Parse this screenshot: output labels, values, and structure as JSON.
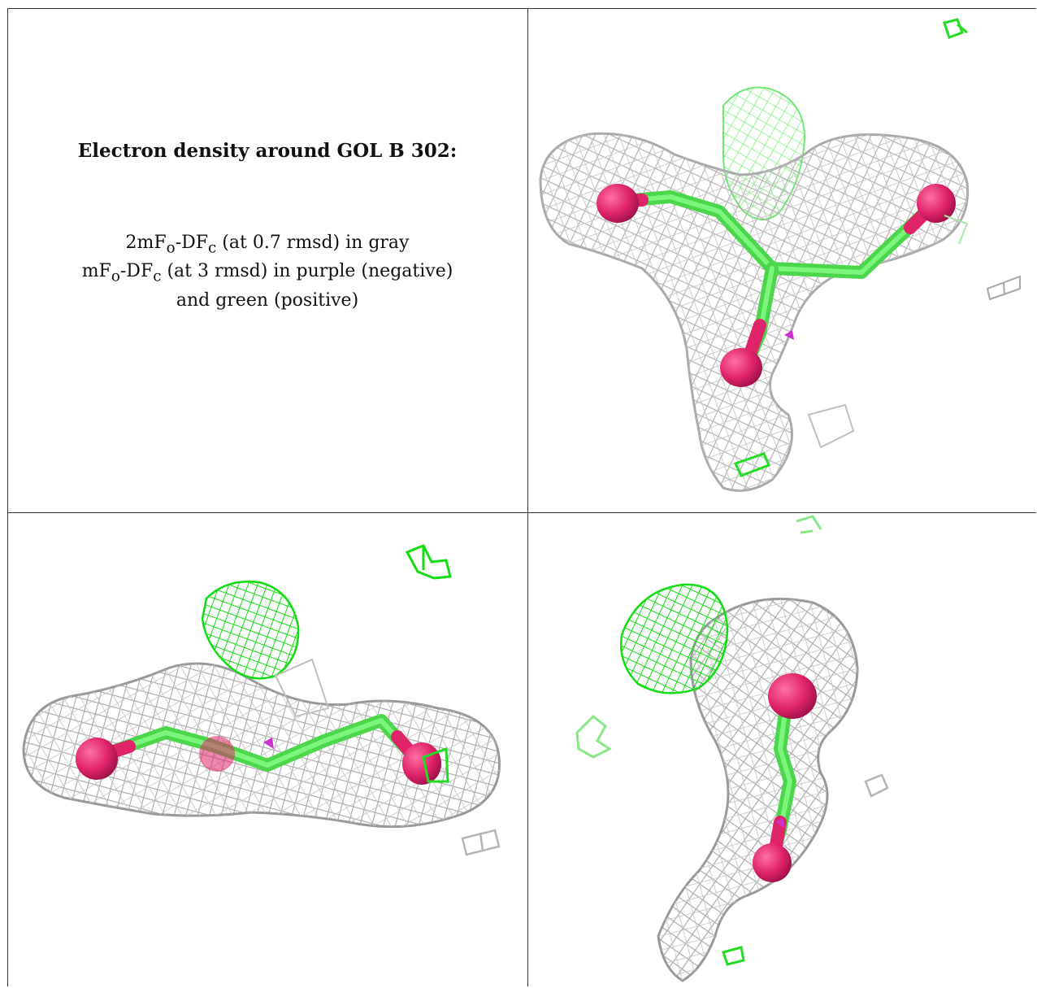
{
  "caption": {
    "title": "Electron density around GOL B 302:",
    "line1": {
      "prefix": "2mF",
      "sub_o": "o",
      "mid": "-DF",
      "sub_c": "c",
      "suffix": " (at 0.7 rmsd) in gray"
    },
    "line2": {
      "prefix": "mF",
      "sub_o": "o",
      "mid": "-DF",
      "sub_c": "c",
      "suffix": " (at 3 rmsd) in purple (negative)"
    },
    "line3": "and green (positive)"
  },
  "colors": {
    "mesh_gray": "#b8b8b8",
    "mesh_green": "#22ee22",
    "bond_green": "#55e855",
    "oxygen": "#e0246a",
    "negative_purple": "#cc33cc",
    "border": "#333333"
  }
}
